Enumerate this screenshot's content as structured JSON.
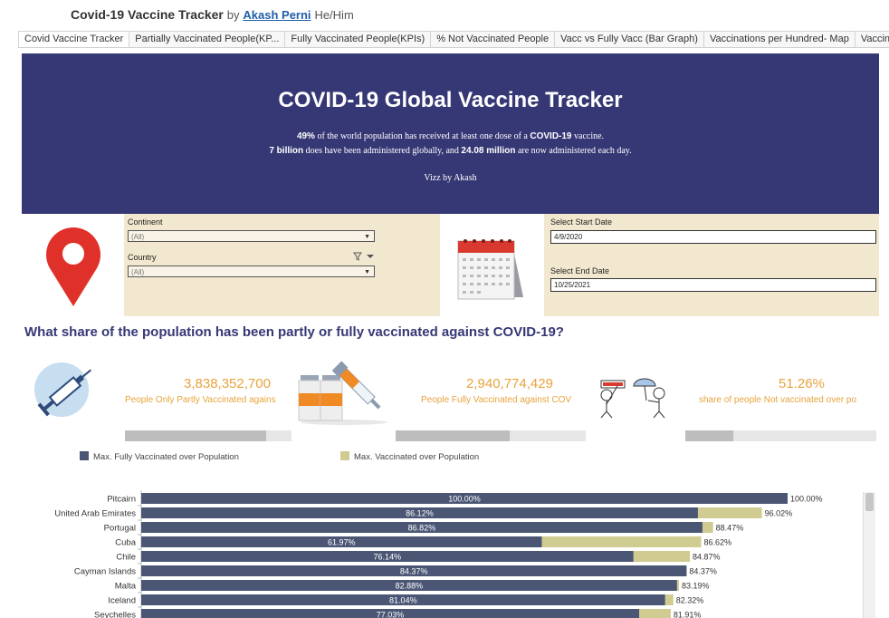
{
  "header": {
    "title": "Covid-19 Vaccine Tracker",
    "by": "by",
    "author": "Akash Perni",
    "pronouns": "He/Him"
  },
  "tabs": [
    {
      "label": "Covid Vaccine Tracker",
      "active": true
    },
    {
      "label": "Partially Vaccinated People(KP..."
    },
    {
      "label": "Fully Vaccinated People(KPIs)"
    },
    {
      "label": "% Not Vaccinated People"
    },
    {
      "label": "Vacc vs Fully Vacc (Bar Graph)"
    },
    {
      "label": "Vaccinations per Hundred- Map"
    },
    {
      "label": "Vaccin"
    }
  ],
  "banner": {
    "title": "COVID-19 Global Vaccine Tracker",
    "line1_bold": "49%",
    "line1_a": " of the world population has received at least one dose of a ",
    "line1_bold2": "COVID-19",
    "line1_b": " vaccine.",
    "line2_bold": "7 billion",
    "line2_a": " does have been administered globally, and ",
    "line2_bold2": "24.08 million",
    "line2_b": " are now administered each day.",
    "line3": "Vizz by Akash"
  },
  "filters": {
    "continent_label": "Continent",
    "continent_value": "(All)",
    "country_label": "Country",
    "country_value": "(All)",
    "start_label": "Select Start Date",
    "start_value": "4/9/2020",
    "end_label": "Select End Date",
    "end_value": "10/25/2021"
  },
  "question": "What share of the population has been partly or fully vaccinated against COVID-19?",
  "kpis": [
    {
      "value": "3,838,352,700",
      "label": "People Only Partly Vaccinated agains",
      "level": 0.85
    },
    {
      "value": "2,940,774,429",
      "label": "People Fully Vaccinated against COV",
      "level": 0.6
    },
    {
      "value": "51.26%",
      "label": "share of people Not vaccinated over po",
      "level": 0.25
    }
  ],
  "legend": [
    {
      "label": "Max. Fully Vaccinated over Population",
      "color": "#4a5674"
    },
    {
      "label": "Max. Vaccinated over Population",
      "color": "#cfcb91"
    }
  ],
  "colors": {
    "fully": "#4a5674",
    "partly": "#cfcb91",
    "banner": "#363875",
    "accent": "#e8a33d"
  },
  "chart_data": {
    "type": "bar",
    "orientation": "horizontal",
    "categories": [
      "Pitcairn",
      "United Arab Emirates",
      "Portugal",
      "Cuba",
      "Chile",
      "Cayman Islands",
      "Malta",
      "Iceland",
      "Seychelles"
    ],
    "series": [
      {
        "name": "Max. Fully Vaccinated over Population",
        "values": [
          100.0,
          86.12,
          86.82,
          61.97,
          76.14,
          84.37,
          82.88,
          81.04,
          77.03
        ]
      },
      {
        "name": "Max. Vaccinated over Population",
        "values": [
          100.0,
          96.02,
          88.47,
          86.62,
          84.87,
          84.37,
          83.19,
          82.32,
          81.91
        ]
      }
    ],
    "labels_inner": [
      "100.00%",
      "86.12%",
      "86.82%",
      "61.97%",
      "76.14%",
      "84.37%",
      "82.88%",
      "81.04%",
      "77.03%"
    ],
    "labels_outer": [
      "100.00%",
      "96.02%",
      "88.47%",
      "86.62%",
      "84.87%",
      "84.37%",
      "83.19%",
      "82.32%",
      "81.91%"
    ],
    "xlim": [
      0,
      100
    ]
  }
}
